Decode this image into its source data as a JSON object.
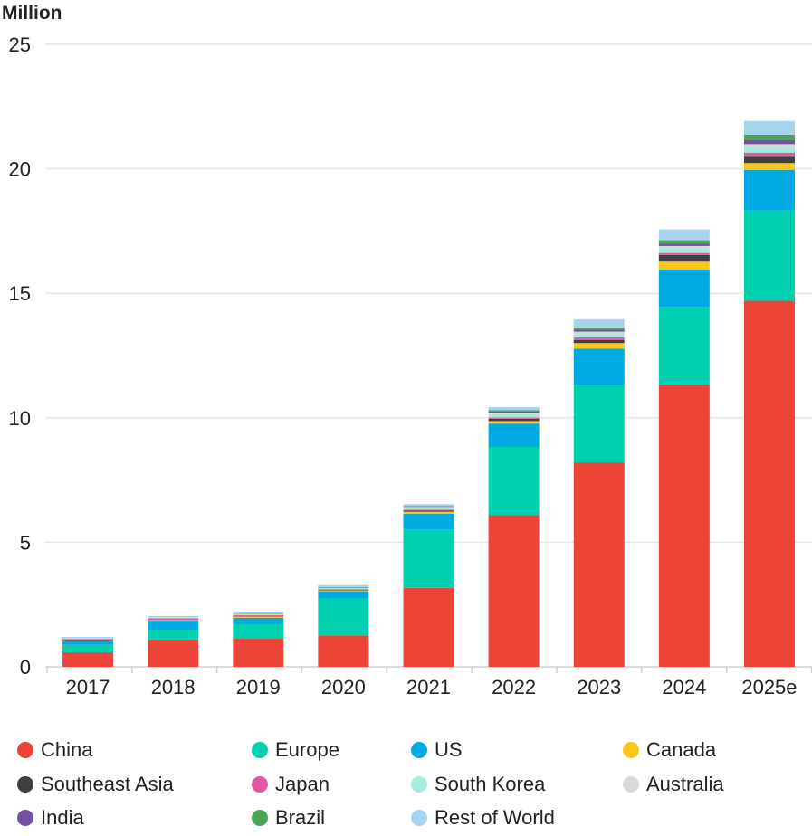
{
  "chart_data": {
    "type": "bar",
    "stacked": true,
    "ylabel": "Million",
    "ylim": [
      0,
      25
    ],
    "yticks": [
      0,
      5,
      10,
      15,
      20,
      25
    ],
    "grid": true,
    "legend_position": "bottom",
    "categories": [
      "2017",
      "2018",
      "2019",
      "2020",
      "2021",
      "2022",
      "2023",
      "2024",
      "2025e"
    ],
    "series": [
      {
        "name": "China",
        "color": "#ec4436",
        "values": [
          0.58,
          1.1,
          1.14,
          1.26,
          3.17,
          6.1,
          8.21,
          11.34,
          14.7
        ]
      },
      {
        "name": "Europe",
        "color": "#00cfb0",
        "values": [
          0.3,
          0.39,
          0.57,
          1.48,
          2.35,
          2.73,
          3.1,
          3.11,
          3.63
        ]
      },
      {
        "name": "US",
        "color": "#00a9e0",
        "values": [
          0.16,
          0.36,
          0.26,
          0.29,
          0.63,
          0.94,
          1.47,
          1.51,
          1.63
        ]
      },
      {
        "name": "Canada",
        "color": "#fcc719",
        "values": [
          0.02,
          0.04,
          0.05,
          0.04,
          0.08,
          0.1,
          0.22,
          0.31,
          0.27
        ]
      },
      {
        "name": "Southeast Asia",
        "color": "#3f3f3f",
        "values": [
          0.01,
          0.01,
          0.02,
          0.02,
          0.04,
          0.09,
          0.12,
          0.27,
          0.29
        ]
      },
      {
        "name": "Japan",
        "color": "#e2589f",
        "values": [
          0.05,
          0.05,
          0.04,
          0.03,
          0.04,
          0.05,
          0.11,
          0.08,
          0.13
        ]
      },
      {
        "name": "South Korea",
        "color": "#a8eadc",
        "values": [
          0.02,
          0.03,
          0.05,
          0.05,
          0.1,
          0.16,
          0.16,
          0.2,
          0.24
        ]
      },
      {
        "name": "Australia",
        "color": "#d9d9d9",
        "values": [
          0.01,
          0.01,
          0.01,
          0.01,
          0.02,
          0.04,
          0.07,
          0.08,
          0.1
        ]
      },
      {
        "name": "India",
        "color": "#7350a3",
        "values": [
          0.0,
          0.0,
          0.0,
          0.01,
          0.01,
          0.05,
          0.08,
          0.1,
          0.17
        ]
      },
      {
        "name": "Brazil",
        "color": "#4aa552",
        "values": [
          0.0,
          0.0,
          0.01,
          0.01,
          0.01,
          0.05,
          0.08,
          0.13,
          0.21
        ]
      },
      {
        "name": "Rest of World",
        "color": "#a6d4ee",
        "values": [
          0.05,
          0.05,
          0.07,
          0.08,
          0.08,
          0.12,
          0.34,
          0.44,
          0.55
        ]
      }
    ]
  }
}
